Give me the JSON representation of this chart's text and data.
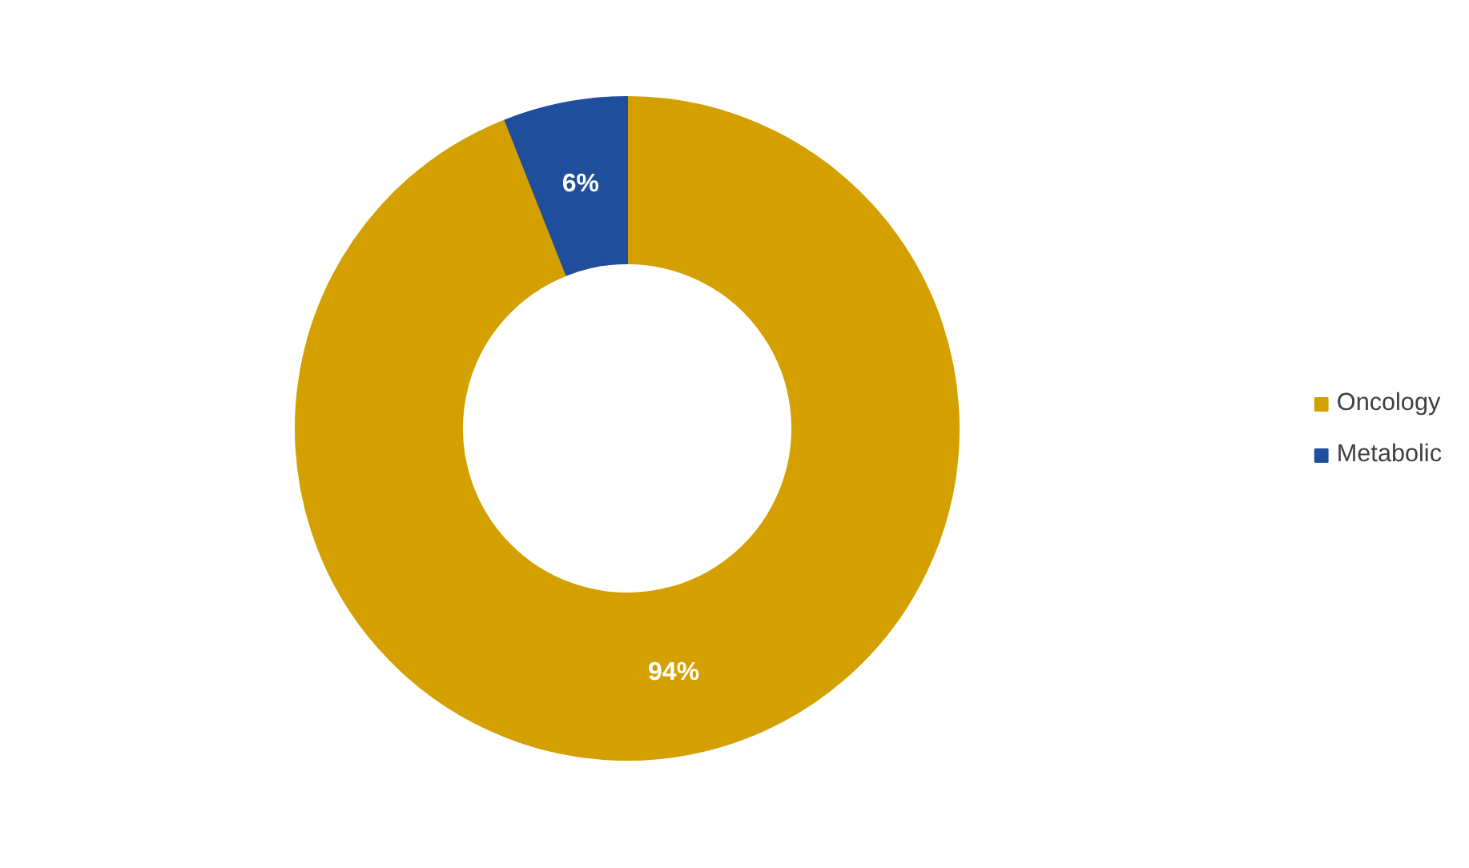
{
  "chart_data": {
    "type": "donut",
    "categories": [
      "Oncology",
      "Metabolic"
    ],
    "values": [
      94,
      6
    ],
    "colors": [
      "#d4a000",
      "#1f4e9c"
    ],
    "value_labels": [
      "94%",
      "6%"
    ],
    "legend": "right"
  }
}
